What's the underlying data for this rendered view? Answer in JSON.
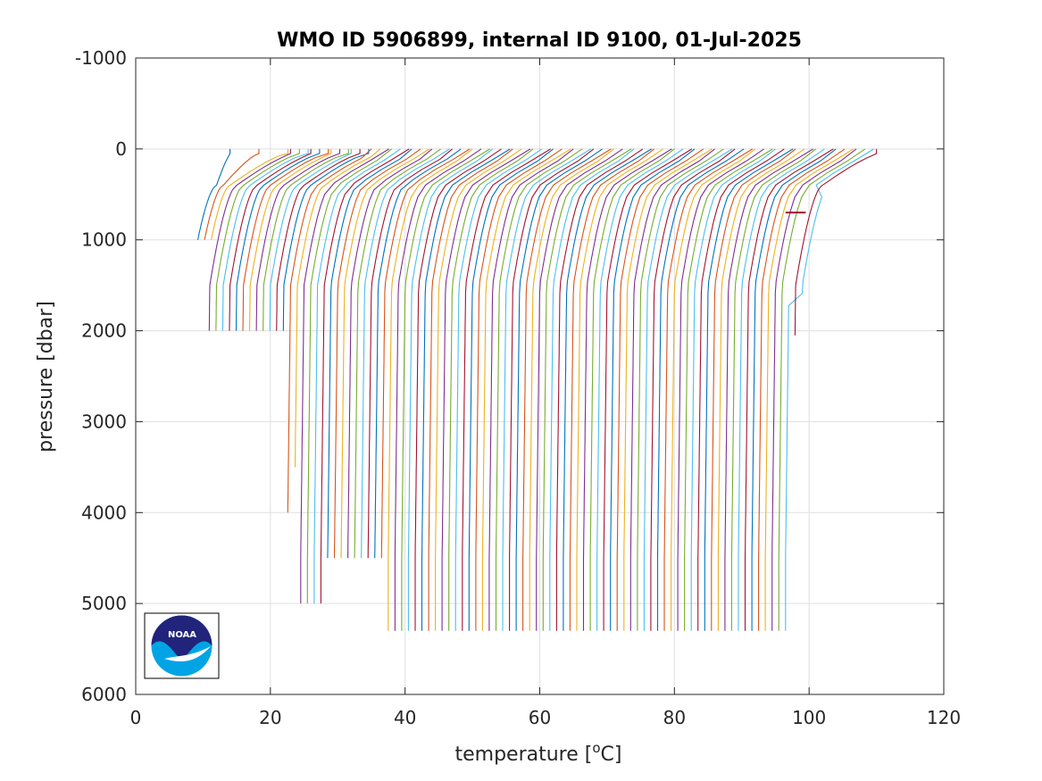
{
  "chart_data": {
    "type": "line",
    "title": "WMO ID 5906899, internal ID 9100, 01-Jul-2025",
    "xlabel_text": "temperature [",
    "xlabel_unit_sup": "o",
    "xlabel_unit_rest": "C]",
    "ylabel": "pressure [dbar]",
    "xlim": [
      0,
      120
    ],
    "ylim": [
      -1000,
      6000
    ],
    "y_reversed": true,
    "xticks": [
      0,
      20,
      40,
      60,
      80,
      100,
      120
    ],
    "yticks": [
      -1000,
      0,
      1000,
      2000,
      3000,
      4000,
      5000,
      6000
    ],
    "xtick_labels": [
      "0",
      "20",
      "40",
      "60",
      "80",
      "100",
      "120"
    ],
    "ytick_labels": [
      "-1000",
      "0",
      "1000",
      "2000",
      "3000",
      "4000",
      "5000",
      "6000"
    ],
    "grid": true,
    "colors": [
      "#0072BD",
      "#D95319",
      "#EDB120",
      "#7E2F8E",
      "#77AC30",
      "#4DBEEE",
      "#A2142F"
    ],
    "note_structure": "Stacked temperature-pressure profiles, each successive profile offset ~1 degree to the right.",
    "profile_count": 91,
    "first_profile_offset_x": 8,
    "offset_step_x": 1.0,
    "max_pressure_by_index": {
      "0-2": 1000,
      "3-14": 2000,
      "15": 4000,
      "16": 3500,
      "17-20": 5000,
      "21-29": 4500,
      "30-89": 5300,
      "90": 2050
    },
    "outlier_segment": {
      "x": [
        96.5,
        99.5
      ],
      "y": [
        700,
        700
      ],
      "color": "#A2142F"
    }
  },
  "logo": {
    "text": "NOAA"
  }
}
